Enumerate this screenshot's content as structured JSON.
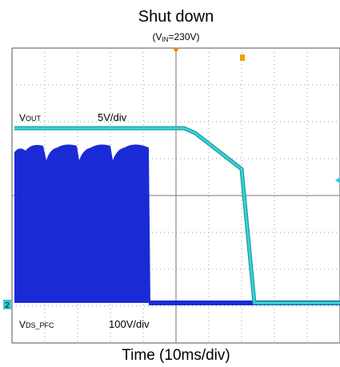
{
  "title": "Shut down",
  "subtitle": {
    "open": "(V",
    "sub": "IN",
    "close": "=230V)"
  },
  "traces": [
    {
      "label": {
        "main": "V",
        "sub": "OUT"
      },
      "scale": "5V/div"
    },
    {
      "label": {
        "main": "V",
        "sub": "DS_PFC"
      },
      "scale": "100V/div"
    }
  ],
  "channel_marker": "2",
  "x_axis_label": "Time (10ms/div)"
}
